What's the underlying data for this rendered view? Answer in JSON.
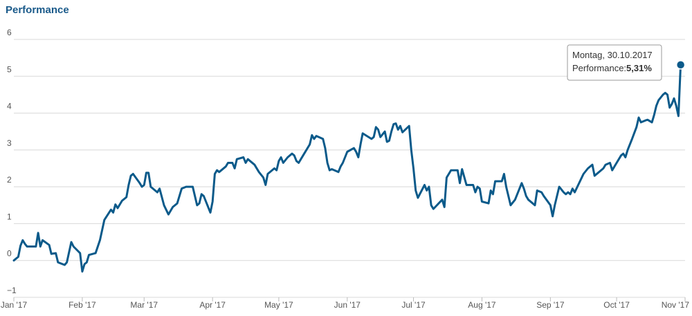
{
  "chart_data": {
    "type": "line",
    "title": "Performance",
    "xlabel": "",
    "ylabel": "",
    "ylim": [
      -1,
      6
    ],
    "xlim": [
      "2017-01-01",
      "2017-11-01"
    ],
    "grid": true,
    "legend": "none",
    "y_ticks": [
      -1,
      0,
      1,
      2,
      3,
      4,
      5,
      6
    ],
    "x_ticks": [
      {
        "date": "2017-01-01",
        "label": "Jan '17"
      },
      {
        "date": "2017-02-01",
        "label": "Feb '17"
      },
      {
        "date": "2017-03-01",
        "label": "Mar '17"
      },
      {
        "date": "2017-04-01",
        "label": "Apr '17"
      },
      {
        "date": "2017-05-01",
        "label": "May '17"
      },
      {
        "date": "2017-06-01",
        "label": "Jun '17"
      },
      {
        "date": "2017-07-01",
        "label": "Jul '17"
      },
      {
        "date": "2017-08-01",
        "label": "Aug '17"
      },
      {
        "date": "2017-09-01",
        "label": "Sep '17"
      },
      {
        "date": "2017-10-01",
        "label": "Oct '17"
      },
      {
        "date": "2017-11-01",
        "label": "Nov '17"
      }
    ],
    "series": [
      {
        "color": "#0b5a8a",
        "points": [
          [
            "2017-01-01",
            0.0
          ],
          [
            "2017-01-03",
            0.1
          ],
          [
            "2017-01-04",
            0.4
          ],
          [
            "2017-01-05",
            0.55
          ],
          [
            "2017-01-06",
            0.45
          ],
          [
            "2017-01-07",
            0.38
          ],
          [
            "2017-01-11",
            0.38
          ],
          [
            "2017-01-12",
            0.75
          ],
          [
            "2017-01-13",
            0.38
          ],
          [
            "2017-01-14",
            0.55
          ],
          [
            "2017-01-17",
            0.42
          ],
          [
            "2017-01-18",
            0.18
          ],
          [
            "2017-01-20",
            0.2
          ],
          [
            "2017-01-21",
            -0.05
          ],
          [
            "2017-01-24",
            -0.12
          ],
          [
            "2017-01-25",
            -0.05
          ],
          [
            "2017-01-27",
            0.5
          ],
          [
            "2017-01-28",
            0.38
          ],
          [
            "2017-01-31",
            0.2
          ],
          [
            "2017-02-01",
            -0.3
          ],
          [
            "2017-02-02",
            -0.1
          ],
          [
            "2017-02-03",
            -0.05
          ],
          [
            "2017-02-04",
            0.15
          ],
          [
            "2017-02-07",
            0.2
          ],
          [
            "2017-02-09",
            0.55
          ],
          [
            "2017-02-11",
            1.1
          ],
          [
            "2017-02-14",
            1.38
          ],
          [
            "2017-02-15",
            1.3
          ],
          [
            "2017-02-16",
            1.52
          ],
          [
            "2017-02-17",
            1.42
          ],
          [
            "2017-02-19",
            1.62
          ],
          [
            "2017-02-21",
            1.72
          ],
          [
            "2017-02-22",
            2.05
          ],
          [
            "2017-02-23",
            2.3
          ],
          [
            "2017-02-24",
            2.35
          ],
          [
            "2017-02-27",
            2.1
          ],
          [
            "2017-02-28",
            2.0
          ],
          [
            "2017-03-01",
            2.05
          ],
          [
            "2017-03-02",
            2.38
          ],
          [
            "2017-03-03",
            2.38
          ],
          [
            "2017-03-04",
            2.0
          ],
          [
            "2017-03-07",
            1.85
          ],
          [
            "2017-03-08",
            1.95
          ],
          [
            "2017-03-10",
            1.5
          ],
          [
            "2017-03-12",
            1.25
          ],
          [
            "2017-03-14",
            1.45
          ],
          [
            "2017-03-16",
            1.55
          ],
          [
            "2017-03-18",
            1.95
          ],
          [
            "2017-03-20",
            2.0
          ],
          [
            "2017-03-23",
            2.0
          ],
          [
            "2017-03-25",
            1.5
          ],
          [
            "2017-03-26",
            1.55
          ],
          [
            "2017-03-27",
            1.8
          ],
          [
            "2017-03-28",
            1.75
          ],
          [
            "2017-03-31",
            1.3
          ],
          [
            "2017-04-01",
            1.6
          ],
          [
            "2017-04-02",
            2.35
          ],
          [
            "2017-04-03",
            2.45
          ],
          [
            "2017-04-04",
            2.4
          ],
          [
            "2017-04-07",
            2.55
          ],
          [
            "2017-04-08",
            2.65
          ],
          [
            "2017-04-10",
            2.65
          ],
          [
            "2017-04-11",
            2.5
          ],
          [
            "2017-04-12",
            2.75
          ],
          [
            "2017-04-15",
            2.8
          ],
          [
            "2017-04-16",
            2.65
          ],
          [
            "2017-04-17",
            2.75
          ],
          [
            "2017-04-20",
            2.6
          ],
          [
            "2017-04-22",
            2.4
          ],
          [
            "2017-04-24",
            2.25
          ],
          [
            "2017-04-25",
            2.05
          ],
          [
            "2017-04-26",
            2.35
          ],
          [
            "2017-04-29",
            2.5
          ],
          [
            "2017-04-30",
            2.45
          ],
          [
            "2017-05-01",
            2.7
          ],
          [
            "2017-05-02",
            2.8
          ],
          [
            "2017-05-03",
            2.65
          ],
          [
            "2017-05-05",
            2.8
          ],
          [
            "2017-05-07",
            2.9
          ],
          [
            "2017-05-08",
            2.85
          ],
          [
            "2017-05-09",
            2.7
          ],
          [
            "2017-05-10",
            2.65
          ],
          [
            "2017-05-12",
            2.85
          ],
          [
            "2017-05-15",
            3.15
          ],
          [
            "2017-05-16",
            3.4
          ],
          [
            "2017-05-17",
            3.3
          ],
          [
            "2017-05-18",
            3.38
          ],
          [
            "2017-05-21",
            3.3
          ],
          [
            "2017-05-22",
            3.05
          ],
          [
            "2017-05-23",
            2.65
          ],
          [
            "2017-05-24",
            2.45
          ],
          [
            "2017-05-25",
            2.48
          ],
          [
            "2017-05-28",
            2.4
          ],
          [
            "2017-05-29",
            2.55
          ],
          [
            "2017-05-30",
            2.65
          ],
          [
            "2017-06-01",
            2.95
          ],
          [
            "2017-06-04",
            3.05
          ],
          [
            "2017-06-05",
            2.95
          ],
          [
            "2017-06-06",
            2.8
          ],
          [
            "2017-06-07",
            3.15
          ],
          [
            "2017-06-08",
            3.45
          ],
          [
            "2017-06-12",
            3.3
          ],
          [
            "2017-06-13",
            3.35
          ],
          [
            "2017-06-14",
            3.62
          ],
          [
            "2017-06-15",
            3.55
          ],
          [
            "2017-06-16",
            3.35
          ],
          [
            "2017-06-18",
            3.5
          ],
          [
            "2017-06-19",
            3.22
          ],
          [
            "2017-06-20",
            3.25
          ],
          [
            "2017-06-21",
            3.5
          ],
          [
            "2017-06-22",
            3.7
          ],
          [
            "2017-06-23",
            3.72
          ],
          [
            "2017-06-24",
            3.55
          ],
          [
            "2017-06-25",
            3.65
          ],
          [
            "2017-06-26",
            3.48
          ],
          [
            "2017-06-29",
            3.65
          ],
          [
            "2017-06-30",
            3.0
          ],
          [
            "2017-07-01",
            2.5
          ],
          [
            "2017-07-02",
            1.9
          ],
          [
            "2017-07-03",
            1.7
          ],
          [
            "2017-07-06",
            2.05
          ],
          [
            "2017-07-07",
            1.9
          ],
          [
            "2017-07-08",
            2.0
          ],
          [
            "2017-07-09",
            1.5
          ],
          [
            "2017-07-10",
            1.4
          ],
          [
            "2017-07-14",
            1.65
          ],
          [
            "2017-07-15",
            1.45
          ],
          [
            "2017-07-16",
            2.25
          ],
          [
            "2017-07-18",
            2.45
          ],
          [
            "2017-07-21",
            2.45
          ],
          [
            "2017-07-22",
            2.1
          ],
          [
            "2017-07-23",
            2.48
          ],
          [
            "2017-07-25",
            2.05
          ],
          [
            "2017-07-28",
            2.05
          ],
          [
            "2017-07-29",
            1.85
          ],
          [
            "2017-07-30",
            2.0
          ],
          [
            "2017-07-31",
            1.95
          ],
          [
            "2017-08-01",
            1.6
          ],
          [
            "2017-08-04",
            1.55
          ],
          [
            "2017-08-05",
            1.9
          ],
          [
            "2017-08-06",
            1.8
          ],
          [
            "2017-08-07",
            2.15
          ],
          [
            "2017-08-10",
            2.15
          ],
          [
            "2017-08-11",
            2.35
          ],
          [
            "2017-08-12",
            2.0
          ],
          [
            "2017-08-14",
            1.5
          ],
          [
            "2017-08-16",
            1.65
          ],
          [
            "2017-08-19",
            2.1
          ],
          [
            "2017-08-20",
            1.95
          ],
          [
            "2017-08-21",
            1.75
          ],
          [
            "2017-08-22",
            1.65
          ],
          [
            "2017-08-25",
            1.5
          ],
          [
            "2017-08-26",
            1.9
          ],
          [
            "2017-08-28",
            1.85
          ],
          [
            "2017-08-29",
            1.75
          ],
          [
            "2017-09-01",
            1.5
          ],
          [
            "2017-09-02",
            1.2
          ],
          [
            "2017-09-03",
            1.5
          ],
          [
            "2017-09-05",
            2.0
          ],
          [
            "2017-09-07",
            1.85
          ],
          [
            "2017-09-08",
            1.8
          ],
          [
            "2017-09-09",
            1.85
          ],
          [
            "2017-09-10",
            1.8
          ],
          [
            "2017-09-11",
            1.95
          ],
          [
            "2017-09-12",
            1.85
          ],
          [
            "2017-09-16",
            2.35
          ],
          [
            "2017-09-18",
            2.5
          ],
          [
            "2017-09-20",
            2.6
          ],
          [
            "2017-09-21",
            2.3
          ],
          [
            "2017-09-23",
            2.4
          ],
          [
            "2017-09-25",
            2.5
          ],
          [
            "2017-09-26",
            2.6
          ],
          [
            "2017-09-28",
            2.65
          ],
          [
            "2017-09-29",
            2.45
          ],
          [
            "2017-10-01",
            2.65
          ],
          [
            "2017-10-03",
            2.85
          ],
          [
            "2017-10-04",
            2.9
          ],
          [
            "2017-10-05",
            2.8
          ],
          [
            "2017-10-06",
            3.0
          ],
          [
            "2017-10-08",
            3.3
          ],
          [
            "2017-10-10",
            3.62
          ],
          [
            "2017-10-11",
            3.88
          ],
          [
            "2017-10-12",
            3.75
          ],
          [
            "2017-10-14",
            3.8
          ],
          [
            "2017-10-15",
            3.82
          ],
          [
            "2017-10-17",
            3.75
          ],
          [
            "2017-10-18",
            3.95
          ],
          [
            "2017-10-19",
            4.2
          ],
          [
            "2017-10-20",
            4.35
          ],
          [
            "2017-10-22",
            4.5
          ],
          [
            "2017-10-23",
            4.55
          ],
          [
            "2017-10-24",
            4.5
          ],
          [
            "2017-10-25",
            4.15
          ],
          [
            "2017-10-26",
            4.25
          ],
          [
            "2017-10-27",
            4.4
          ],
          [
            "2017-10-28",
            4.2
          ],
          [
            "2017-10-29",
            3.92
          ],
          [
            "2017-10-30",
            5.31
          ]
        ]
      }
    ],
    "tooltip": {
      "date": "2017-10-30",
      "line1": "Montag, 30.10.2017",
      "label": "Performance:",
      "value_text": "5,31%"
    }
  }
}
